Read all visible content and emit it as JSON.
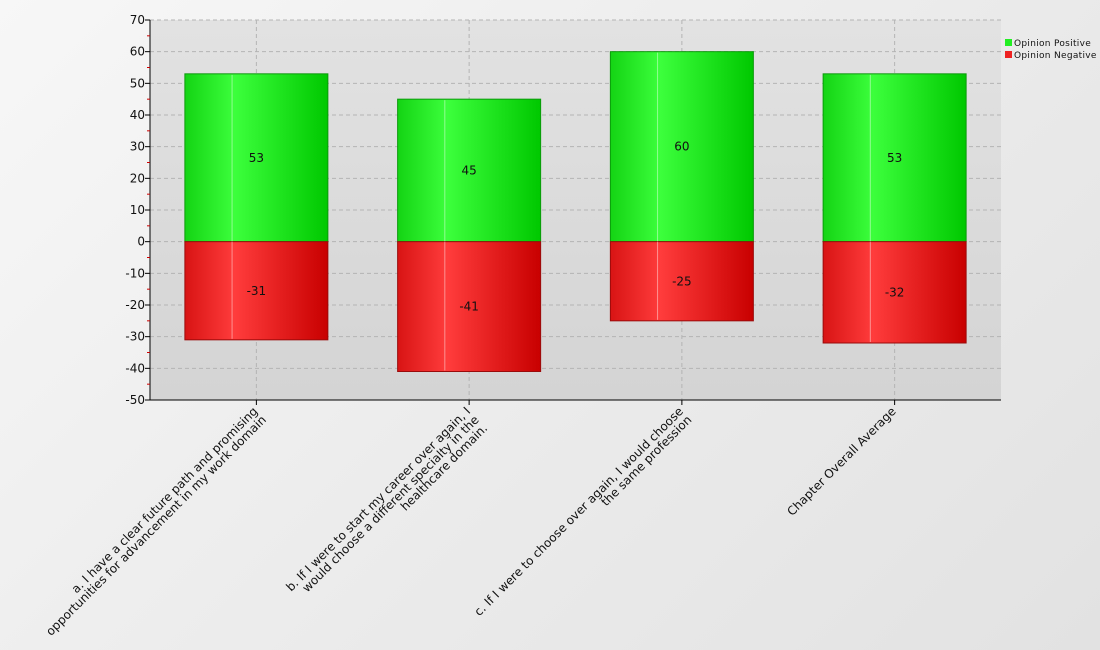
{
  "chart_data": {
    "type": "bar",
    "stacked": true,
    "categories": [
      [
        "a. I have a clear future path and promising",
        "opportunities for advancement in my work domain"
      ],
      [
        "b. If I were to start my career over again, I",
        "would choose a different specialty in the",
        "healthcare domain."
      ],
      [
        "c. If I were to choose over again, I would choose",
        "the same profession"
      ],
      [
        "Chapter Overall Average"
      ]
    ],
    "series": [
      {
        "name": "Opinion Positive",
        "values": [
          53,
          45,
          60,
          53
        ],
        "color": "#22ee22"
      },
      {
        "name": "Opinion Negative",
        "values": [
          -31,
          -41,
          -25,
          -32
        ],
        "color": "#ee2222"
      }
    ],
    "ylim": [
      -50,
      70
    ],
    "yticks": [
      "70",
      "60",
      "50",
      "40",
      "30",
      "20",
      "10",
      "0",
      "-10",
      "-20",
      "-30",
      "-40",
      "-50"
    ],
    "grid": true,
    "legend_position": "top-right",
    "title": "",
    "xlabel": "",
    "ylabel": ""
  }
}
